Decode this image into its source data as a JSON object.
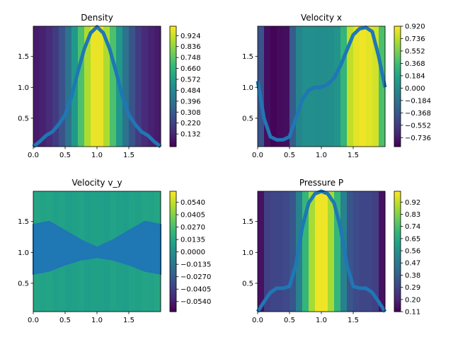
{
  "chart_data": [
    {
      "type": "heatmap",
      "title": "Density",
      "colormap": "viridis",
      "xlim": [
        0,
        2
      ],
      "ylim": [
        0.04,
        1.99
      ],
      "xticks": [
        {
          "value": 0,
          "label": "0.0"
        },
        0.5,
        {
          "value": 1,
          "label": "1.0"
        },
        1.5
      ],
      "yticks": [
        0.5,
        {
          "value": 1,
          "label": "1.0"
        },
        1.5
      ],
      "clim": [
        0.03,
        1.0
      ],
      "cticks": [
        0.132,
        {
          "value": 0.22,
          "label": "0.220"
        },
        0.308,
        0.396,
        0.484,
        0.572,
        {
          "value": 0.66,
          "label": "0.660"
        },
        0.748,
        0.836,
        0.924
      ],
      "field_x": [
        0.05,
        0.15,
        0.25,
        0.35,
        0.45,
        0.55,
        0.65,
        0.75,
        0.85,
        0.95,
        1.05,
        1.15,
        1.25,
        1.35,
        1.45,
        1.55,
        1.65,
        1.75,
        1.85,
        1.95
      ],
      "field_values": [
        0.1,
        0.12,
        0.15,
        0.2,
        0.28,
        0.4,
        0.55,
        0.72,
        0.88,
        0.97,
        0.97,
        0.88,
        0.72,
        0.55,
        0.4,
        0.28,
        0.2,
        0.15,
        0.12,
        0.1
      ],
      "line": {
        "color": "#1f77b4",
        "x": [
          0,
          0.1,
          0.2,
          0.3,
          0.4,
          0.5,
          0.6,
          0.7,
          0.8,
          0.9,
          1.0,
          1.1,
          1.2,
          1.3,
          1.4,
          1.5,
          1.6,
          1.7,
          1.8,
          1.9,
          2.0
        ],
        "values": [
          0.04,
          0.12,
          0.22,
          0.28,
          0.4,
          0.55,
          0.85,
          1.25,
          1.62,
          1.88,
          1.98,
          1.88,
          1.62,
          1.25,
          0.85,
          0.55,
          0.4,
          0.28,
          0.22,
          0.12,
          0.04
        ]
      }
    },
    {
      "type": "heatmap",
      "title": "Velocity x",
      "colormap": "viridis",
      "xlim": [
        0,
        2
      ],
      "ylim": [
        0.04,
        1.99
      ],
      "xticks": [
        {
          "value": 0,
          "label": "0.0"
        },
        0.5,
        {
          "value": 1,
          "label": "1.0"
        },
        1.5
      ],
      "yticks": [
        0.5,
        {
          "value": 1,
          "label": "1.0"
        },
        1.5
      ],
      "clim": [
        -0.87,
        0.92
      ],
      "cticks": [
        {
          "value": -0.736,
          "label": "−0.736"
        },
        {
          "value": -0.552,
          "label": "−0.552"
        },
        {
          "value": -0.368,
          "label": "−0.368"
        },
        {
          "value": -0.184,
          "label": "−0.184"
        },
        {
          "value": 0,
          "label": "0.000"
        },
        0.184,
        0.368,
        0.552,
        0.736,
        {
          "value": 0.92,
          "label": "0.920"
        }
      ],
      "field_x": [
        0.05,
        0.15,
        0.25,
        0.35,
        0.45,
        0.55,
        0.65,
        0.75,
        0.85,
        0.95,
        1.05,
        1.15,
        1.25,
        1.35,
        1.45,
        1.55,
        1.65,
        1.75,
        1.85,
        1.95
      ],
      "field_values": [
        -0.4,
        -0.8,
        -0.85,
        -0.82,
        -0.8,
        -0.35,
        -0.05,
        0.02,
        0.02,
        0.0,
        0.0,
        0.02,
        0.05,
        0.3,
        0.75,
        0.85,
        0.88,
        0.85,
        0.8,
        0.4
      ],
      "line": {
        "color": "#1f77b4",
        "x": [
          0,
          0.1,
          0.2,
          0.3,
          0.4,
          0.5,
          0.6,
          0.7,
          0.8,
          0.9,
          1.0,
          1.1,
          1.2,
          1.3,
          1.4,
          1.5,
          1.6,
          1.7,
          1.8,
          1.9,
          2.0
        ],
        "values": [
          1.1,
          0.5,
          0.2,
          0.15,
          0.15,
          0.2,
          0.5,
          0.8,
          0.95,
          1.0,
          1.0,
          1.05,
          1.15,
          1.35,
          1.6,
          1.85,
          1.95,
          1.97,
          1.9,
          1.5,
          1.0
        ]
      }
    },
    {
      "type": "heatmap",
      "title": "Velocity v_y",
      "colormap": "viridis",
      "xlim": [
        0,
        2
      ],
      "ylim": [
        0.04,
        1.99
      ],
      "xticks": [
        {
          "value": 0,
          "label": "0.0"
        },
        0.5,
        {
          "value": 1,
          "label": "1.0"
        },
        1.5
      ],
      "yticks": [
        0.5,
        {
          "value": 1,
          "label": "1.0"
        },
        1.5
      ],
      "clim": [
        -0.065,
        0.066
      ],
      "cticks": [
        {
          "value": -0.054,
          "label": "−0.0540"
        },
        {
          "value": -0.0405,
          "label": "−0.0405"
        },
        {
          "value": -0.027,
          "label": "−0.0270"
        },
        {
          "value": -0.0135,
          "label": "−0.0135"
        },
        {
          "value": 0,
          "label": "0.0000"
        },
        0.0135,
        {
          "value": 0.027,
          "label": "0.0270"
        },
        0.0405,
        {
          "value": 0.054,
          "label": "0.0540"
        }
      ],
      "field_x": [
        0.05,
        0.15,
        0.25,
        0.35,
        0.45,
        0.55,
        0.65,
        0.75,
        0.85,
        0.95,
        1.05,
        1.15,
        1.25,
        1.35,
        1.45,
        1.55,
        1.65,
        1.75,
        1.85,
        1.95
      ],
      "field_values": [
        0.012,
        0.01,
        0.011,
        0.009,
        0.01,
        0.008,
        0.009,
        0.01,
        0.008,
        0.009,
        0.009,
        0.008,
        0.01,
        0.009,
        0.008,
        0.01,
        0.009,
        0.011,
        0.01,
        0.012
      ],
      "band": {
        "color": "#1f77b4",
        "x": [
          0,
          0.25,
          0.5,
          0.75,
          1.0,
          1.25,
          1.5,
          1.75,
          2.0
        ],
        "low": [
          0.65,
          0.7,
          0.8,
          0.88,
          0.92,
          0.88,
          0.8,
          0.7,
          0.65
        ],
        "high": [
          1.45,
          1.5,
          1.35,
          1.2,
          1.08,
          1.2,
          1.35,
          1.5,
          1.45
        ]
      }
    },
    {
      "type": "heatmap",
      "title": "Pressure P",
      "colormap": "viridis",
      "xlim": [
        0,
        2
      ],
      "ylim": [
        0.04,
        1.99
      ],
      "xticks": [
        {
          "value": 0,
          "label": "0.0"
        },
        0.5,
        {
          "value": 1,
          "label": "1.0"
        },
        1.5
      ],
      "yticks": [
        0.5,
        {
          "value": 1,
          "label": "1.0"
        },
        1.5
      ],
      "clim": [
        0.11,
        1.0
      ],
      "cticks": [
        0.11,
        {
          "value": 0.2,
          "label": "0.20"
        },
        0.29,
        0.38,
        0.47,
        0.56,
        0.65,
        0.74,
        0.83,
        0.92
      ],
      "field_x": [
        0.05,
        0.15,
        0.25,
        0.35,
        0.45,
        0.55,
        0.65,
        0.75,
        0.85,
        0.95,
        1.05,
        1.15,
        1.25,
        1.35,
        1.45,
        1.55,
        1.65,
        1.75,
        1.85,
        1.95
      ],
      "field_values": [
        0.15,
        0.28,
        0.3,
        0.3,
        0.31,
        0.35,
        0.5,
        0.7,
        0.88,
        0.98,
        0.98,
        0.88,
        0.7,
        0.5,
        0.35,
        0.31,
        0.3,
        0.3,
        0.28,
        0.15
      ],
      "line": {
        "color": "#1f77b4",
        "x": [
          0,
          0.1,
          0.2,
          0.3,
          0.4,
          0.5,
          0.6,
          0.7,
          0.8,
          0.9,
          1.0,
          1.1,
          1.2,
          1.3,
          1.4,
          1.5,
          1.6,
          1.7,
          1.8,
          1.9,
          2.0
        ],
        "values": [
          0.04,
          0.2,
          0.35,
          0.42,
          0.42,
          0.45,
          0.8,
          1.4,
          1.8,
          1.95,
          1.99,
          1.95,
          1.8,
          1.4,
          0.8,
          0.45,
          0.42,
          0.42,
          0.35,
          0.2,
          0.04
        ]
      }
    }
  ]
}
